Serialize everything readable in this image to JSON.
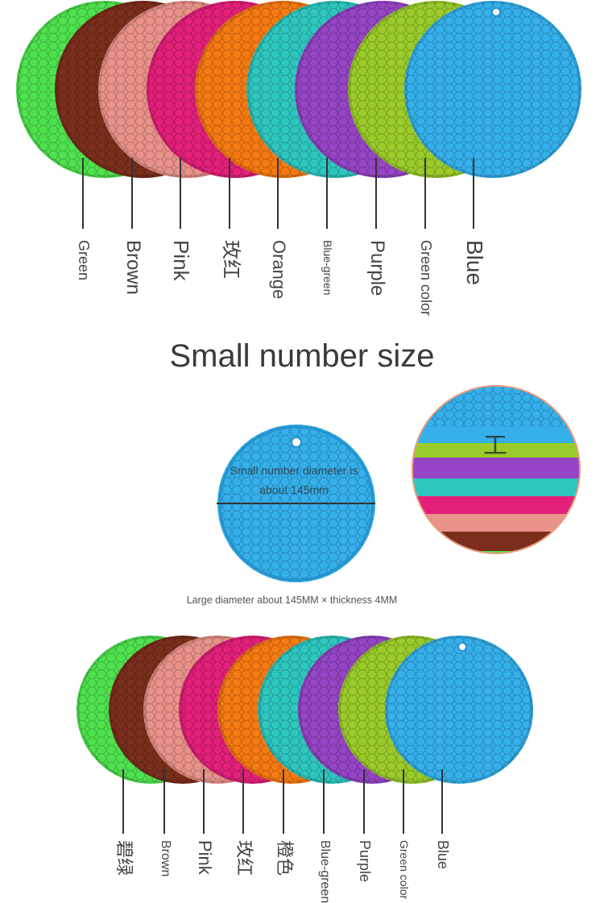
{
  "top_colors": {
    "labels": [
      "Green",
      "Brown",
      "Pink",
      "玫红",
      "Orange",
      "Blue-green",
      "Purple",
      "Green color",
      "Blue"
    ],
    "fills": [
      "#4fe24f",
      "#7b2e1c",
      "#e8928a",
      "#e3207a",
      "#f57a12",
      "#2ec7c0",
      "#9545c5",
      "#9acb2a",
      "#35b0eb"
    ]
  },
  "title": "Small number size",
  "dimension": {
    "diameter_text": "Small number diameter is about 145mm",
    "thickness_mark": "工",
    "caption": "Large diameter about 145MM × thickness 4MM"
  },
  "bottom_colors": {
    "labels": [
      "碧绿",
      "Brown",
      "Pink",
      "玫红",
      "橙色",
      "Blue-green",
      "Purple",
      "Green color",
      "Blue"
    ],
    "fills": [
      "#4fe24f",
      "#7b2e1c",
      "#e8928a",
      "#e3207a",
      "#f57a12",
      "#2ec7c0",
      "#9545c5",
      "#9acb2a",
      "#35b0eb"
    ]
  }
}
